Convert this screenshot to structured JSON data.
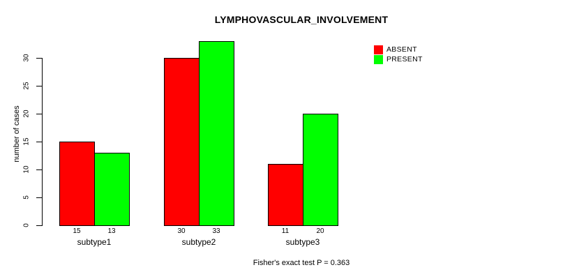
{
  "chart_data": {
    "type": "bar",
    "title": "LYMPHOVASCULAR_INVOLVEMENT",
    "ylabel": "number of cases",
    "xlabel": "",
    "categories": [
      "subtype1",
      "subtype2",
      "subtype3"
    ],
    "series": [
      {
        "name": "ABSENT",
        "color": "#ff0000",
        "values": [
          15,
          30,
          11
        ]
      },
      {
        "name": "PRESENT",
        "color": "#00ff00",
        "values": [
          13,
          33,
          20
        ]
      }
    ],
    "bar_value_labels": [
      [
        "15",
        "13"
      ],
      [
        "30",
        "33"
      ],
      [
        "11",
        "20"
      ]
    ],
    "yticks": [
      0,
      5,
      10,
      15,
      20,
      25,
      30
    ],
    "ylim": [
      0,
      33
    ],
    "grid": false,
    "legend_position": "top-right",
    "annotation": "Fisher's exact test P = 0.363"
  }
}
